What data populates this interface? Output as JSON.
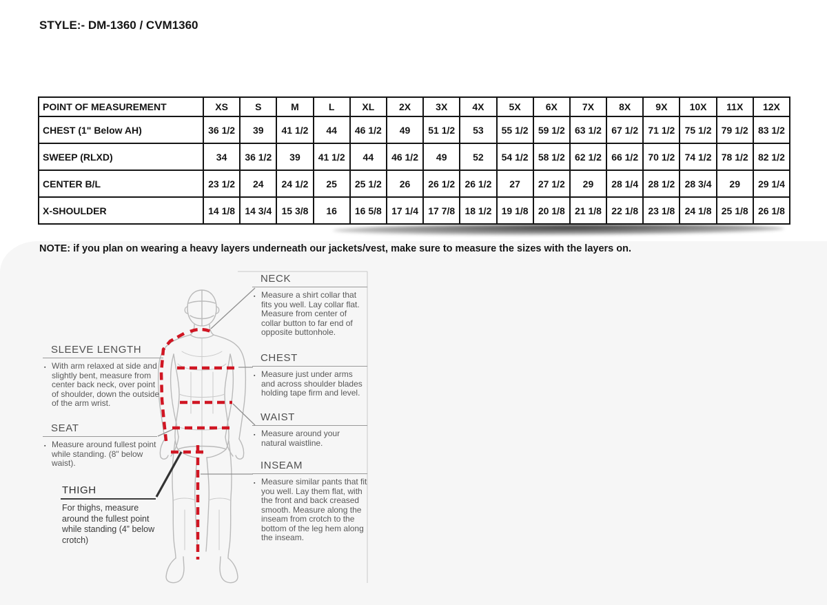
{
  "title": "STYLE:- DM-1360 / CVM1360",
  "note": "NOTE: if you plan on wearing a heavy layers underneath our jackets/vest, make sure to measure the sizes with the layers on.",
  "size_table": {
    "header": [
      "POINT OF MEASUREMENT",
      "XS",
      "S",
      "M",
      "L",
      "XL",
      "2X",
      "3X",
      "4X",
      "5X",
      "6X",
      "7X",
      "8X",
      "9X",
      "10X",
      "11X",
      "12X"
    ],
    "rows": [
      {
        "label": "CHEST (1\" Below AH)",
        "values": [
          "36 1/2",
          "39",
          "41 1/2",
          "44",
          "46 1/2",
          "49",
          "51 1/2",
          "53",
          "55 1/2",
          "59 1/2",
          "63 1/2",
          "67 1/2",
          "71 1/2",
          "75 1/2",
          "79 1/2",
          "83 1/2"
        ]
      },
      {
        "label": "SWEEP (RLXD)",
        "values": [
          "34",
          "36 1/2",
          "39",
          "41 1/2",
          "44",
          "46 1/2",
          "49",
          "52",
          "54 1/2",
          "58 1/2",
          "62 1/2",
          "66 1/2",
          "70 1/2",
          "74 1/2",
          "78 1/2",
          "82 1/2"
        ]
      },
      {
        "label": "CENTER B/L",
        "values": [
          "23 1/2",
          "24",
          "24 1/2",
          "25",
          "25 1/2",
          "26",
          "26 1/2",
          "26 1/2",
          "27",
          "27 1/2",
          "29",
          "28 1/4",
          "28 1/2",
          "28 3/4",
          "29",
          "29 1/4"
        ]
      },
      {
        "label": "X-SHOULDER",
        "values": [
          "14 1/8",
          "14 3/4",
          "15 3/8",
          "16",
          "16 5/8",
          "17 1/4",
          "17 7/8",
          "18 1/2",
          "19 1/8",
          "20 1/8",
          "21 1/8",
          "22 1/8",
          "23 1/8",
          "24 1/8",
          "25 1/8",
          "26 1/8"
        ]
      }
    ]
  },
  "guide": {
    "right_sections": [
      {
        "heading": "NECK",
        "text": "Measure a shirt collar that fits you well. Lay collar flat. Measure from center of collar button to far end of opposite buttonhole."
      },
      {
        "heading": "CHEST",
        "text": "Measure just under arms and across shoulder blades holding tape firm and level."
      },
      {
        "heading": "WAIST",
        "text": "Measure around your natural waistline."
      },
      {
        "heading": "INSEAM",
        "text": "Measure similar pants that fit you well. Lay them flat, with the front and back creased smooth. Measure along the inseam from crotch to the bottom of the leg hem along the inseam."
      }
    ],
    "left_sections": [
      {
        "heading": "SLEEVE LENGTH",
        "text": "With arm relaxed at side and slightly bent, measure from center back neck, over point of shoulder, down the outside of the arm wrist."
      },
      {
        "heading": "SEAT",
        "text": "Measure around fullest point while standing. (8\" below waist)."
      },
      {
        "heading": "THIGH",
        "text": "For thighs, measure around the fullest point while standing (4” below crotch)"
      }
    ],
    "bullet_icon": "▪"
  },
  "colors": {
    "measure_line": "#d01623",
    "figure_outline": "#bababa",
    "leader_line": "#8f8f8f",
    "heading_text": "#4f4f4f",
    "table_border": "#141414"
  }
}
